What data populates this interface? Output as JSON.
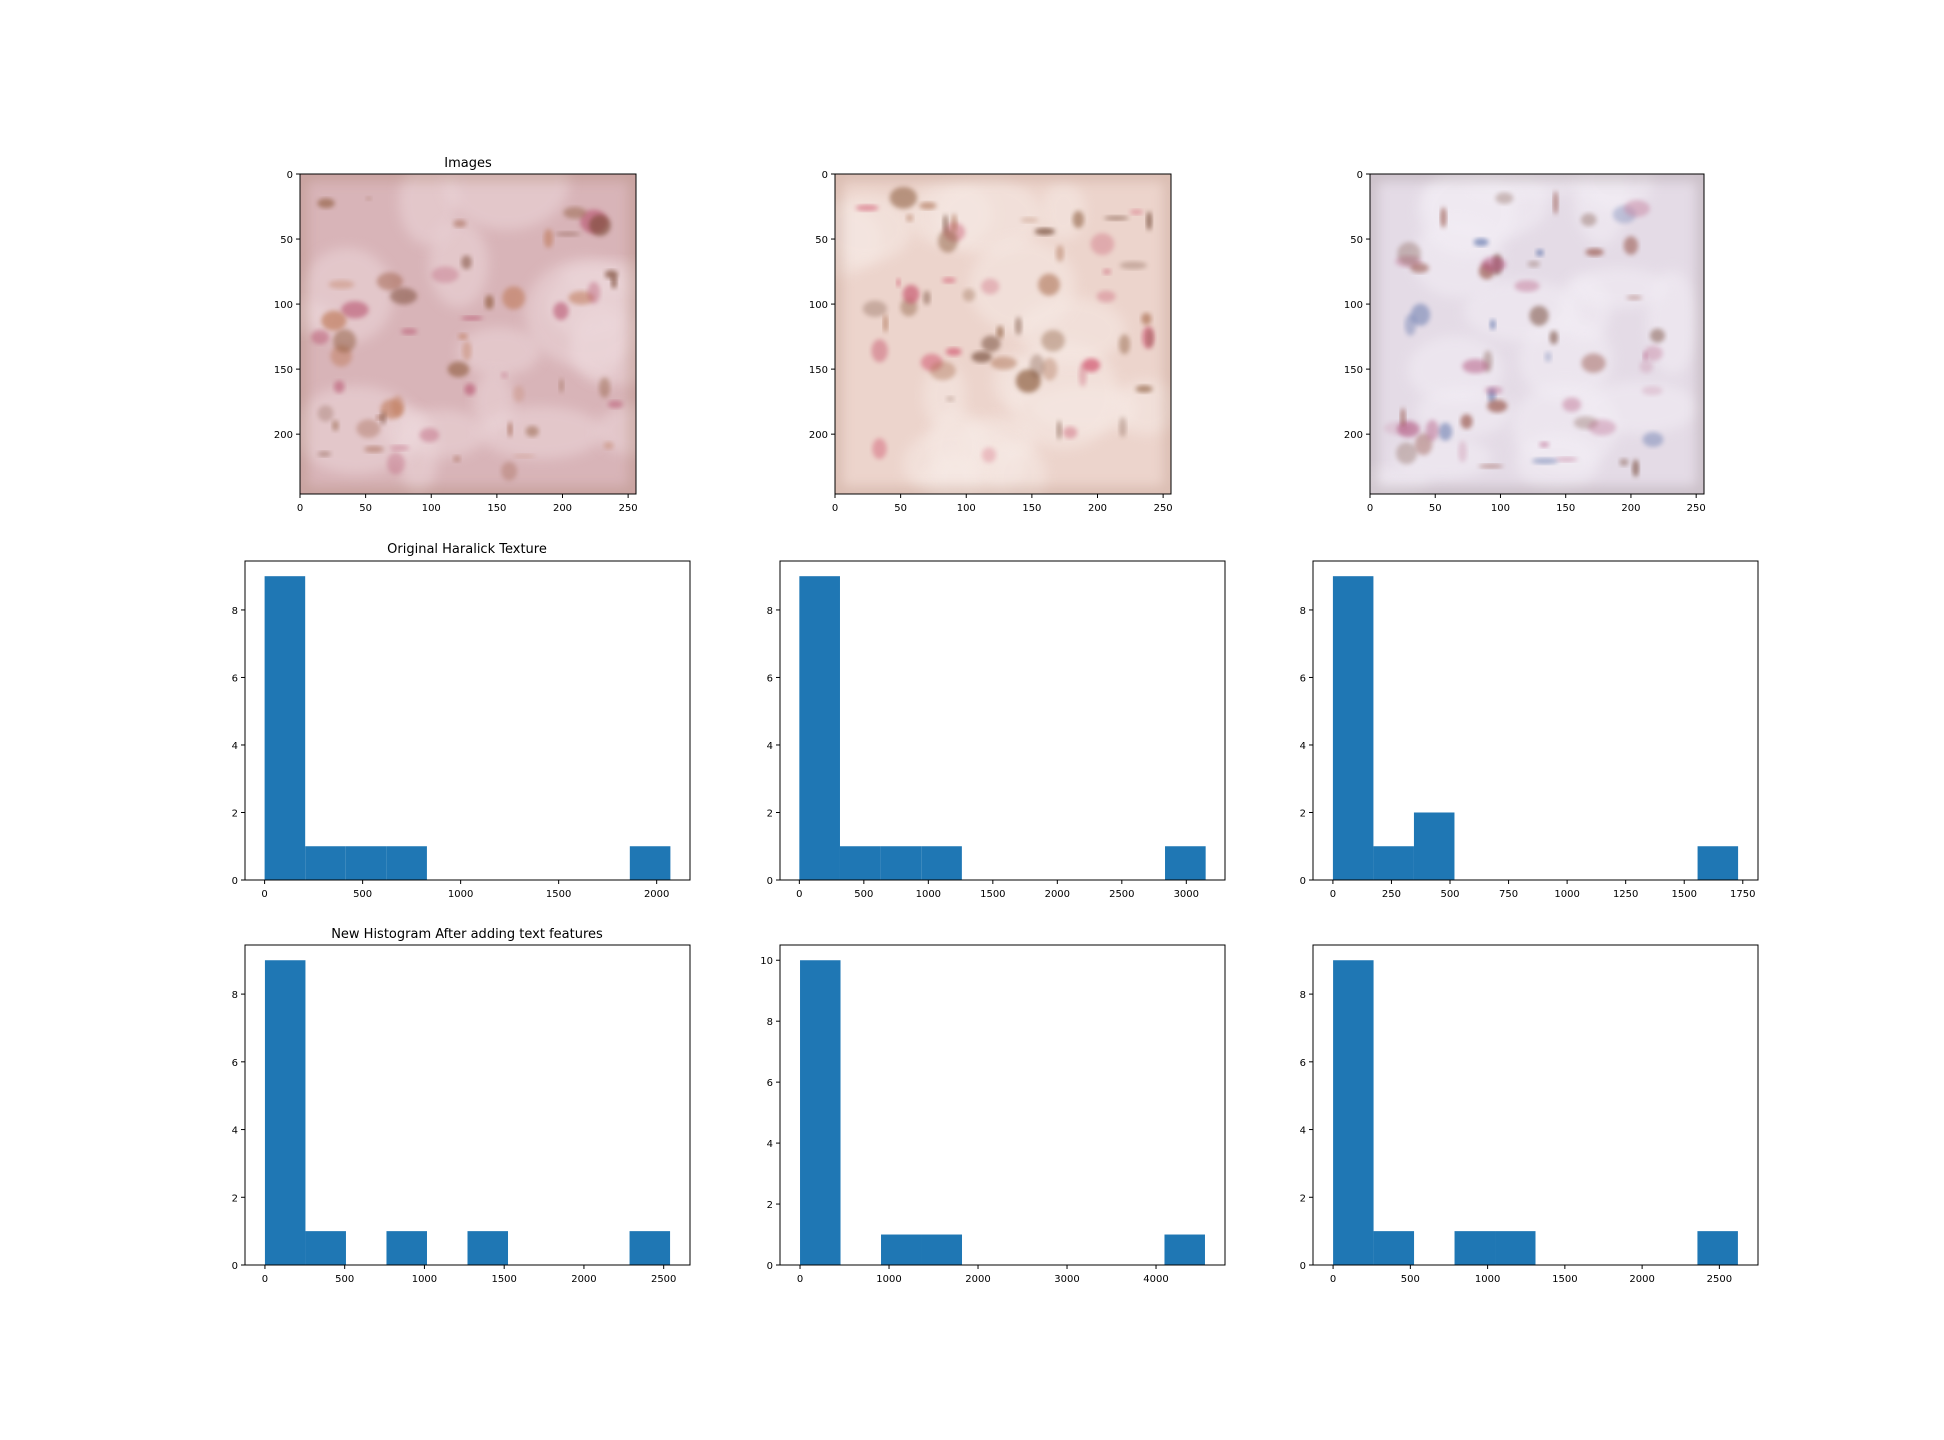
{
  "titles": {
    "images": "Images",
    "original": "Original Haralick Texture",
    "new": "New Histogram After adding text features"
  },
  "colors": {
    "bar": "#1f77b4",
    "axis": "#000000",
    "background": "#ffffff"
  },
  "images": [
    {
      "xticks": [
        0,
        50,
        100,
        150,
        200,
        250
      ],
      "yticks": [
        0,
        50,
        100,
        150,
        200
      ],
      "xlim": [
        0,
        256
      ],
      "ylim": [
        246,
        0
      ],
      "palette": {
        "base": "#d8b4b8",
        "light": "#ecd7da",
        "spots": [
          "#8e5a3a",
          "#a0614a",
          "#b8516e",
          "#7a4a36",
          "#c07a5a"
        ],
        "edge": "#a8806c"
      }
    },
    {
      "xticks": [
        0,
        50,
        100,
        150,
        200,
        250
      ],
      "yticks": [
        0,
        50,
        100,
        150,
        200
      ],
      "xlim": [
        0,
        256
      ],
      "ylim": [
        246,
        0
      ],
      "palette": {
        "base": "#ecd4cc",
        "light": "#f6e9e4",
        "spots": [
          "#d0506a",
          "#8a5a3a",
          "#6e4530",
          "#c95c72",
          "#a86a4c"
        ],
        "edge": "#b89080"
      }
    },
    {
      "xticks": [
        0,
        50,
        100,
        150,
        200,
        250
      ],
      "yticks": [
        0,
        50,
        100,
        150,
        200
      ],
      "xlim": [
        0,
        256
      ],
      "ylim": [
        246,
        0
      ],
      "palette": {
        "base": "#e4dbe6",
        "light": "#f3eef5",
        "spots": [
          "#c98aa6",
          "#8a3c2e",
          "#5a70a8",
          "#b0507a",
          "#7a5040"
        ],
        "edge": "#9a8a8e"
      }
    }
  ],
  "chart_data": [
    {
      "type": "bar",
      "title": "Original Haralick Texture",
      "bins": [
        [
          0,
          207
        ],
        [
          207,
          414
        ],
        [
          414,
          621
        ],
        [
          621,
          828
        ],
        [
          828,
          1035
        ],
        [
          1035,
          1242
        ],
        [
          1242,
          1449
        ],
        [
          1449,
          1656
        ],
        [
          1656,
          1863
        ],
        [
          1863,
          2070
        ]
      ],
      "values": [
        9,
        1,
        1,
        1,
        0,
        0,
        0,
        0,
        0,
        1
      ],
      "xlim": [
        -100,
        2170
      ],
      "ylim": [
        0,
        9.45
      ],
      "xticks": [
        0,
        500,
        1000,
        1500,
        2000
      ],
      "yticks": [
        0,
        2,
        4,
        6,
        8
      ],
      "xticklabels": [
        "0",
        "500",
        "1000",
        "1500",
        "2000"
      ],
      "yticklabels": [
        "0",
        "2",
        "4",
        "6",
        "8"
      ]
    },
    {
      "type": "bar",
      "title": "",
      "bins": [
        [
          0,
          315
        ],
        [
          315,
          630
        ],
        [
          630,
          945
        ],
        [
          945,
          1260
        ],
        [
          1260,
          1575
        ],
        [
          1575,
          1890
        ],
        [
          1890,
          2205
        ],
        [
          2205,
          2520
        ],
        [
          2520,
          2835
        ],
        [
          2835,
          3150
        ]
      ],
      "values": [
        9,
        1,
        1,
        1,
        0,
        0,
        0,
        0,
        0,
        1
      ],
      "xlim": [
        -150,
        3300
      ],
      "ylim": [
        0,
        9.45
      ],
      "xticks": [
        0,
        500,
        1000,
        1500,
        2000,
        2500,
        3000
      ],
      "yticks": [
        0,
        2,
        4,
        6,
        8
      ],
      "xticklabels": [
        "0",
        "500",
        "1000",
        "1500",
        "2000",
        "2500",
        "3000"
      ],
      "yticklabels": [
        "0",
        "2",
        "4",
        "6",
        "8"
      ]
    },
    {
      "type": "bar",
      "title": "",
      "bins": [
        [
          0,
          173
        ],
        [
          173,
          346
        ],
        [
          346,
          519
        ],
        [
          519,
          692
        ],
        [
          692,
          865
        ],
        [
          865,
          1038
        ],
        [
          1038,
          1211
        ],
        [
          1211,
          1384
        ],
        [
          1384,
          1557
        ],
        [
          1557,
          1730
        ]
      ],
      "values": [
        9,
        1,
        2,
        0,
        0,
        0,
        0,
        0,
        0,
        1
      ],
      "xlim": [
        -85,
        1815
      ],
      "ylim": [
        0,
        9.45
      ],
      "xticks": [
        0,
        250,
        500,
        750,
        1000,
        1250,
        1500,
        1750
      ],
      "yticks": [
        0,
        2,
        4,
        6,
        8
      ],
      "xticklabels": [
        "0",
        "250",
        "500",
        "750",
        "1000",
        "1250",
        "1500",
        "1750"
      ],
      "yticklabels": [
        "0",
        "2",
        "4",
        "6",
        "8"
      ]
    },
    {
      "type": "bar",
      "title": "New Histogram After adding text features",
      "bins": [
        [
          0,
          254
        ],
        [
          254,
          508
        ],
        [
          508,
          762
        ],
        [
          762,
          1016
        ],
        [
          1016,
          1270
        ],
        [
          1270,
          1524
        ],
        [
          1524,
          1778
        ],
        [
          1778,
          2032
        ],
        [
          2032,
          2286
        ],
        [
          2286,
          2540
        ]
      ],
      "values": [
        9,
        1,
        0,
        1,
        0,
        1,
        0,
        0,
        0,
        1
      ],
      "xlim": [
        -125,
        2665
      ],
      "ylim": [
        0,
        9.45
      ],
      "xticks": [
        0,
        500,
        1000,
        1500,
        2000,
        2500
      ],
      "yticks": [
        0,
        2,
        4,
        6,
        8
      ],
      "xticklabels": [
        "0",
        "500",
        "1000",
        "1500",
        "2000",
        "2500"
      ],
      "yticklabels": [
        "0",
        "2",
        "4",
        "6",
        "8"
      ]
    },
    {
      "type": "bar",
      "title": "",
      "bins": [
        [
          0,
          455
        ],
        [
          455,
          910
        ],
        [
          910,
          1365
        ],
        [
          1365,
          1820
        ],
        [
          1820,
          2275
        ],
        [
          2275,
          2730
        ],
        [
          2730,
          3185
        ],
        [
          3185,
          3640
        ],
        [
          3640,
          4095
        ],
        [
          4095,
          4550
        ]
      ],
      "values": [
        10,
        0,
        1,
        1,
        0,
        0,
        0,
        0,
        0,
        1
      ],
      "xlim": [
        -225,
        4775
      ],
      "ylim": [
        0,
        10.5
      ],
      "xticks": [
        0,
        1000,
        2000,
        3000,
        4000
      ],
      "yticks": [
        0,
        2,
        4,
        6,
        8,
        10
      ],
      "xticklabels": [
        "0",
        "1000",
        "2000",
        "3000",
        "4000"
      ],
      "yticklabels": [
        "0",
        "2",
        "4",
        "6",
        "8",
        "10"
      ]
    },
    {
      "type": "bar",
      "title": "",
      "bins": [
        [
          0,
          262
        ],
        [
          262,
          524
        ],
        [
          524,
          786
        ],
        [
          786,
          1048
        ],
        [
          1048,
          1310
        ],
        [
          1310,
          1572
        ],
        [
          1572,
          1834
        ],
        [
          1834,
          2096
        ],
        [
          2096,
          2358
        ],
        [
          2358,
          2620
        ]
      ],
      "values": [
        9,
        1,
        0,
        1,
        1,
        0,
        0,
        0,
        0,
        1
      ],
      "xlim": [
        -130,
        2750
      ],
      "ylim": [
        0,
        9.45
      ],
      "xticks": [
        0,
        500,
        1000,
        1500,
        2000,
        2500
      ],
      "yticks": [
        0,
        2,
        4,
        6,
        8
      ],
      "xticklabels": [
        "0",
        "500",
        "1000",
        "1500",
        "2000",
        "2500"
      ],
      "yticklabels": [
        "0",
        "2",
        "4",
        "6",
        "8"
      ]
    }
  ]
}
